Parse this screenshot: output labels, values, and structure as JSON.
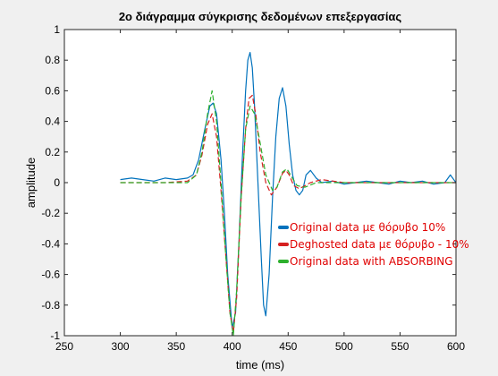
{
  "chart_data": {
    "type": "line",
    "title": "2o διάγραμμα σύγκρισης δεδομένων επεξεργασίας",
    "xlabel": "time (ms)",
    "ylabel": "amplitude",
    "xlim": [
      250,
      600
    ],
    "ylim": [
      -1,
      1
    ],
    "xticks": [
      "250",
      "300",
      "350",
      "400",
      "450",
      "500",
      "550",
      "600"
    ],
    "yticks": [
      "1",
      "0.8",
      "0.6",
      "0.4",
      "0.2",
      "0",
      "-0.2",
      "-0.4",
      "-0.6",
      "-0.8",
      "-1"
    ],
    "grid": false,
    "legend_position": "center-right",
    "series": [
      {
        "name": "Original data με θόρυβο 10%",
        "color": "#0072bd",
        "style": "solid",
        "x": [
          300,
          310,
          320,
          330,
          340,
          350,
          360,
          365,
          370,
          375,
          380,
          383,
          386,
          390,
          393,
          396,
          400,
          403,
          406,
          409,
          412,
          414,
          416,
          418,
          420,
          423,
          426,
          428,
          430,
          433,
          436,
          439,
          442,
          445,
          448,
          451,
          454,
          457,
          460,
          463,
          466,
          470,
          475,
          480,
          490,
          500,
          510,
          520,
          530,
          540,
          550,
          560,
          570,
          580,
          590,
          595,
          600
        ],
        "y": [
          0.02,
          0.03,
          0.02,
          0.01,
          0.03,
          0.02,
          0.03,
          0.05,
          0.15,
          0.33,
          0.5,
          0.52,
          0.45,
          0.15,
          -0.2,
          -0.6,
          -0.95,
          -0.85,
          -0.4,
          0.15,
          0.6,
          0.8,
          0.85,
          0.75,
          0.5,
          0.0,
          -0.5,
          -0.8,
          -0.87,
          -0.6,
          -0.1,
          0.3,
          0.55,
          0.62,
          0.5,
          0.25,
          0.05,
          -0.05,
          -0.08,
          -0.05,
          0.05,
          0.08,
          0.03,
          0.0,
          0.01,
          -0.01,
          0.0,
          0.01,
          0.0,
          -0.01,
          0.01,
          0.0,
          0.01,
          -0.01,
          0.0,
          0.05,
          0.0
        ]
      },
      {
        "name": "Deghosted data με θόρυβο - 10%",
        "color": "#d62020",
        "style": "dashed",
        "x": [
          300,
          320,
          340,
          360,
          368,
          373,
          378,
          382,
          386,
          390,
          394,
          398,
          401,
          404,
          408,
          412,
          415,
          418,
          421,
          425,
          430,
          435,
          440,
          445,
          448,
          451,
          455,
          460,
          470,
          480,
          500,
          520,
          540,
          560,
          580,
          600
        ],
        "y": [
          0.0,
          0.0,
          0.0,
          0.01,
          0.05,
          0.18,
          0.38,
          0.45,
          0.3,
          -0.05,
          -0.45,
          -0.85,
          -0.98,
          -0.75,
          -0.1,
          0.35,
          0.55,
          0.57,
          0.45,
          0.2,
          0.0,
          -0.08,
          -0.03,
          0.06,
          0.08,
          0.05,
          -0.02,
          -0.04,
          0.0,
          0.02,
          0.0,
          0.0,
          0.0,
          0.0,
          0.0,
          0.0
        ]
      },
      {
        "name": "Original data with ABSORBING",
        "color": "#2db02d",
        "style": "dashed",
        "x": [
          300,
          320,
          340,
          360,
          368,
          373,
          378,
          382,
          386,
          390,
          394,
          398,
          401,
          404,
          408,
          412,
          416,
          420,
          424,
          430,
          436,
          440,
          445,
          449,
          453,
          458,
          465,
          475,
          490,
          510,
          540,
          570,
          600
        ],
        "y": [
          0.0,
          0.0,
          0.0,
          0.0,
          0.05,
          0.2,
          0.45,
          0.6,
          0.4,
          0.0,
          -0.45,
          -0.85,
          -1.0,
          -0.7,
          -0.1,
          0.35,
          0.5,
          0.45,
          0.3,
          0.05,
          -0.05,
          -0.03,
          0.07,
          0.09,
          0.04,
          -0.02,
          -0.03,
          0.0,
          0.0,
          0.0,
          0.0,
          0.0,
          0.0
        ]
      }
    ]
  }
}
